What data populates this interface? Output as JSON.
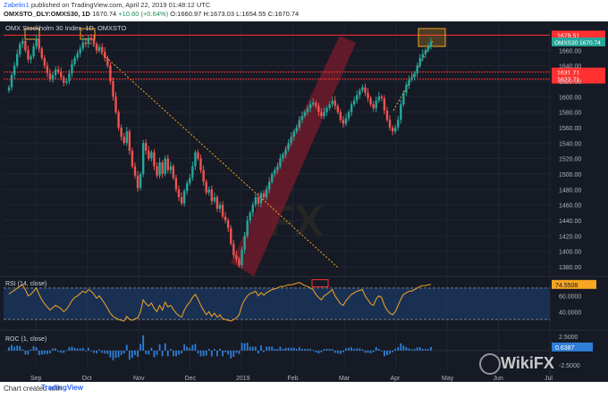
{
  "header": {
    "author": "Zabelin1",
    "published_text": "published on TradingView.com, April 22, 2019 01:48:12 UTC",
    "symbol_line": "OMXSTO_DLY:OMXS30, 1D",
    "ohlc_values": "1670.74",
    "ohlc_o": "O:1660.97",
    "ohlc_h": "H:1673.03",
    "ohlc_l": "L:1654.55",
    "ohlc_c": "C:1670.74",
    "change": "+10.60 (+0.64%)"
  },
  "footer": {
    "copyright": "Chart created with",
    "brand": "TradingView"
  },
  "watermark": {
    "brand": "WikiFX"
  },
  "colors": {
    "background": "#151a24",
    "up": "#26a69a",
    "down": "#ef5350",
    "resistance": "#ff3030",
    "rsi_line": "#f5a623",
    "channel_fill": "#7a1b2b",
    "trendline": "#f5a623",
    "rsi_band": "#1d3a66"
  },
  "chart_data": [
    {
      "type": "candlestick",
      "title": "OMX Stockholm 30 Index, 1D, OMXSTO",
      "symbol_tag": "OMXS30",
      "last_price_label": "1670.74",
      "x": [
        "Sep",
        "Oct",
        "Nov",
        "Dec",
        "2019",
        "Feb",
        "Mar",
        "Apr",
        "May",
        "Jun",
        "Jul"
      ],
      "y_ticks": [
        1380,
        1400,
        1420,
        1440,
        1460,
        1480,
        1500,
        1520,
        1540,
        1560,
        1580,
        1600,
        1620,
        1640,
        1660
      ],
      "ylim": [
        1372,
        1688
      ],
      "horizontal_levels": [
        {
          "label": "1679.51",
          "value": 1679.51
        },
        {
          "label": "1631.71",
          "value": 1631.71
        },
        {
          "label": "1622.71",
          "value": 1622.71
        }
      ],
      "closes": [
        1612,
        1628,
        1640,
        1655,
        1668,
        1672,
        1660,
        1648,
        1652,
        1665,
        1675,
        1662,
        1650,
        1640,
        1630,
        1622,
        1628,
        1635,
        1632,
        1625,
        1618,
        1620,
        1630,
        1642,
        1650,
        1656,
        1662,
        1670,
        1668,
        1676,
        1674,
        1668,
        1660,
        1664,
        1658,
        1650,
        1640,
        1620,
        1600,
        1580,
        1560,
        1548,
        1540,
        1555,
        1530,
        1510,
        1498,
        1482,
        1500,
        1540,
        1530,
        1520,
        1528,
        1510,
        1498,
        1515,
        1500,
        1520,
        1505,
        1510,
        1495,
        1480,
        1470,
        1462,
        1478,
        1488,
        1495,
        1510,
        1528,
        1520,
        1505,
        1490,
        1476,
        1480,
        1465,
        1470,
        1455,
        1460,
        1445,
        1440,
        1430,
        1410,
        1395,
        1390,
        1382,
        1402,
        1420,
        1440,
        1450,
        1460,
        1470,
        1462,
        1475,
        1470,
        1480,
        1490,
        1500,
        1505,
        1510,
        1520,
        1525,
        1532,
        1540,
        1548,
        1555,
        1560,
        1570,
        1575,
        1580,
        1585,
        1590,
        1592,
        1588,
        1580,
        1575,
        1580,
        1585,
        1590,
        1595,
        1588,
        1580,
        1570,
        1565,
        1572,
        1580,
        1590,
        1595,
        1602,
        1608,
        1612,
        1605,
        1598,
        1590,
        1585,
        1595,
        1600,
        1598,
        1582,
        1570,
        1560,
        1555,
        1560,
        1570,
        1590,
        1605,
        1615,
        1622,
        1625,
        1630,
        1640,
        1650,
        1655,
        1660,
        1665,
        1670.74
      ],
      "date_labels_positions": [
        "Sep",
        "Oct",
        "Nov",
        "Dec",
        "2019",
        "Feb",
        "Mar",
        "Apr",
        "May",
        "Jun",
        "Jul"
      ]
    },
    {
      "type": "line",
      "title": "RSI (14, close)",
      "last_value_label": "74.5508",
      "y_ticks": [
        40,
        60
      ],
      "y_tick_labels": [
        "40.0000",
        "60.0000"
      ],
      "ylim": [
        20,
        80
      ],
      "band_upper": 70,
      "band_lower": 30,
      "values": [
        62,
        65,
        67,
        70,
        72,
        74,
        68,
        60,
        62,
        66,
        70,
        62,
        55,
        50,
        46,
        42,
        45,
        48,
        46,
        44,
        40,
        43,
        48,
        54,
        58,
        60,
        63,
        66,
        64,
        68,
        66,
        62,
        57,
        60,
        55,
        50,
        44,
        38,
        34,
        32,
        30,
        29,
        28,
        34,
        30,
        29,
        31,
        32,
        40,
        55,
        50,
        47,
        51,
        44,
        40,
        48,
        42,
        52,
        46,
        48,
        43,
        38,
        35,
        33,
        42,
        48,
        52,
        58,
        62,
        56,
        48,
        42,
        36,
        40,
        34,
        38,
        33,
        36,
        31,
        30,
        29,
        28,
        30,
        32,
        36,
        48,
        55,
        60,
        63,
        64,
        66,
        60,
        64,
        61,
        64,
        66,
        68,
        69,
        70,
        72,
        72,
        73,
        74,
        74,
        75,
        76,
        77,
        75,
        73,
        72,
        70,
        68,
        62,
        58,
        55,
        60,
        62,
        65,
        68,
        60,
        55,
        50,
        48,
        54,
        58,
        62,
        64,
        66,
        67,
        68,
        60,
        55,
        50,
        48,
        56,
        60,
        58,
        48,
        42,
        38,
        36,
        40,
        48,
        56,
        62,
        64,
        66,
        66,
        68,
        70,
        72,
        73,
        73,
        74,
        74.55
      ]
    },
    {
      "type": "bar",
      "title": "ROC (1, close)",
      "last_value_label": "0.6387",
      "y_tick_labels": [
        "2.5000",
        "-2.5000"
      ],
      "ylim": [
        -3,
        3
      ],
      "values": [
        0.6,
        1.0,
        0.7,
        0.9,
        0.8,
        0.2,
        -0.7,
        -0.7,
        0.2,
        0.8,
        0.6,
        -0.8,
        -0.7,
        -0.6,
        -0.6,
        -0.5,
        0.4,
        0.4,
        -0.2,
        -0.4,
        -0.4,
        0.1,
        0.6,
        0.7,
        0.5,
        0.4,
        0.4,
        0.5,
        -0.1,
        0.5,
        -0.1,
        -0.4,
        -0.5,
        0.2,
        -0.4,
        -0.5,
        -0.6,
        -1.2,
        -1.7,
        -1.3,
        -1.2,
        -0.8,
        -0.5,
        1.0,
        -1.6,
        -1.3,
        -0.8,
        -1.1,
        1.2,
        2.7,
        -0.6,
        -0.7,
        0.5,
        -1.2,
        -0.8,
        1.1,
        -1.0,
        1.3,
        -1.0,
        0.3,
        -1.0,
        -1.0,
        -0.7,
        -0.5,
        1.1,
        0.7,
        0.5,
        1.0,
        1.2,
        -0.5,
        -1.0,
        -1.0,
        -0.9,
        0.3,
        -1.0,
        0.3,
        -1.0,
        0.3,
        -1.0,
        -0.3,
        -0.7,
        -1.4,
        -1.1,
        -0.4,
        -0.6,
        1.4,
        1.3,
        1.4,
        0.7,
        0.7,
        0.7,
        -0.5,
        0.9,
        -0.3,
        0.7,
        0.7,
        0.7,
        0.3,
        0.3,
        0.7,
        0.3,
        0.5,
        0.5,
        0.5,
        0.5,
        0.3,
        0.6,
        0.3,
        0.3,
        0.3,
        0.3,
        0.1,
        -0.3,
        -0.5,
        -0.3,
        0.3,
        0.3,
        0.3,
        0.3,
        -0.4,
        -0.5,
        -0.6,
        -0.3,
        0.4,
        0.5,
        0.6,
        0.3,
        0.4,
        0.4,
        0.2,
        -0.4,
        -0.4,
        -0.5,
        -0.3,
        0.6,
        0.3,
        -0.1,
        -1.0,
        -0.8,
        -0.6,
        -0.3,
        0.3,
        0.6,
        1.3,
        0.9,
        0.6,
        0.4,
        0.2,
        0.3,
        0.6,
        0.6,
        0.3,
        0.3,
        0.3,
        0.64
      ]
    }
  ]
}
